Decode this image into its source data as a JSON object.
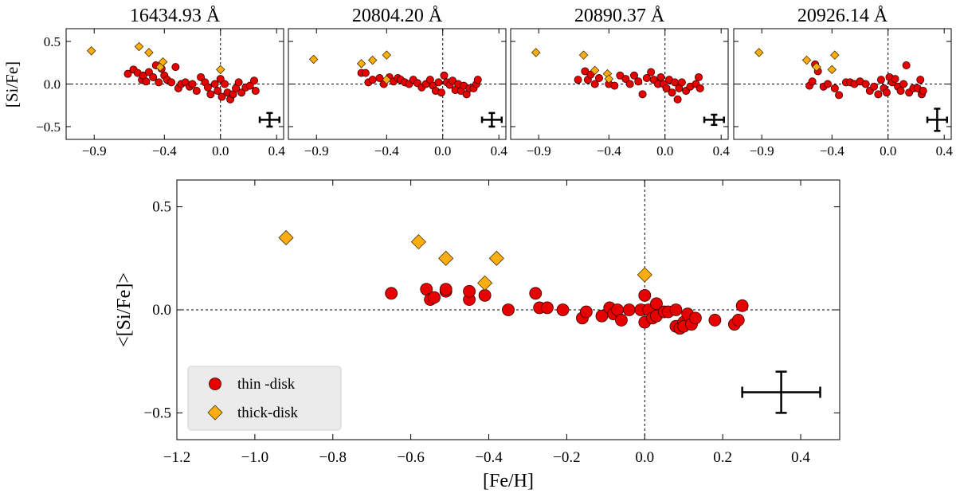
{
  "chart_data": {
    "type": "scatter",
    "top_panels": {
      "ylabel": "[Si/Fe]",
      "xlim": [
        -1.1,
        0.45
      ],
      "ylim": [
        -0.65,
        0.65
      ],
      "xticks": [
        -0.9,
        -0.4,
        0.0,
        0.4
      ],
      "xticklabels": [
        "−0.9",
        "−0.4",
        "0.0",
        "0.4"
      ],
      "yticks": [
        0.5,
        0.0,
        -0.5
      ],
      "yticklabels": [
        "0.5",
        "0.0",
        "−0.5"
      ],
      "panels": [
        {
          "title": "16434.93 Å",
          "error": {
            "x": 0.35,
            "y": -0.42,
            "xerr": 0.07,
            "yerr": 0.08
          },
          "thin": [
            [
              -0.66,
              0.12
            ],
            [
              -0.62,
              0.17
            ],
            [
              -0.59,
              0.13
            ],
            [
              -0.56,
              0.05
            ],
            [
              -0.55,
              0.1
            ],
            [
              -0.53,
              0.03
            ],
            [
              -0.51,
              0.14
            ],
            [
              -0.48,
              0.08
            ],
            [
              -0.46,
              0.22
            ],
            [
              -0.44,
              0.02
            ],
            [
              -0.42,
              0.18
            ],
            [
              -0.4,
              0.1
            ],
            [
              -0.38,
              0.05
            ],
            [
              -0.35,
              0.02
            ],
            [
              -0.32,
              0.2
            ],
            [
              -0.3,
              -0.05
            ],
            [
              -0.28,
              0.0
            ],
            [
              -0.25,
              0.02
            ],
            [
              -0.22,
              -0.03
            ],
            [
              -0.2,
              0.0
            ],
            [
              -0.17,
              -0.08
            ],
            [
              -0.14,
              0.08
            ],
            [
              -0.11,
              0.02
            ],
            [
              -0.09,
              -0.04
            ],
            [
              -0.07,
              -0.12
            ],
            [
              -0.04,
              0.0
            ],
            [
              -0.02,
              -0.08
            ],
            [
              0.0,
              0.06
            ],
            [
              0.01,
              -0.15
            ],
            [
              0.03,
              0.0
            ],
            [
              0.05,
              -0.1
            ],
            [
              0.07,
              -0.18
            ],
            [
              0.09,
              -0.12
            ],
            [
              0.11,
              -0.05
            ],
            [
              0.13,
              0.02
            ],
            [
              0.15,
              -0.1
            ],
            [
              0.18,
              -0.04
            ],
            [
              0.21,
              -0.02
            ],
            [
              0.24,
              0.04
            ],
            [
              0.25,
              -0.08
            ]
          ],
          "thick": [
            [
              -0.92,
              0.39
            ],
            [
              -0.58,
              0.44
            ],
            [
              -0.51,
              0.37
            ],
            [
              -0.43,
              0.2
            ],
            [
              -0.41,
              0.26
            ],
            [
              0.0,
              0.17
            ]
          ]
        },
        {
          "title": "20804.20 Å",
          "error": {
            "x": 0.35,
            "y": -0.42,
            "xerr": 0.07,
            "yerr": 0.08
          },
          "thin": [
            [
              -0.58,
              0.13
            ],
            [
              -0.55,
              0.13
            ],
            [
              -0.53,
              0.02
            ],
            [
              -0.5,
              0.05
            ],
            [
              -0.45,
              0.07
            ],
            [
              -0.42,
              0.0
            ],
            [
              -0.38,
              0.08
            ],
            [
              -0.35,
              0.03
            ],
            [
              -0.32,
              0.07
            ],
            [
              -0.3,
              0.05
            ],
            [
              -0.27,
              0.02
            ],
            [
              -0.24,
              0.0
            ],
            [
              -0.21,
              0.05
            ],
            [
              -0.18,
              0.01
            ],
            [
              -0.15,
              -0.04
            ],
            [
              -0.12,
              0.0
            ],
            [
              -0.09,
              0.05
            ],
            [
              -0.07,
              -0.02
            ],
            [
              -0.05,
              -0.08
            ],
            [
              -0.03,
              0.02
            ],
            [
              -0.01,
              -0.1
            ],
            [
              0.01,
              0.1
            ],
            [
              0.03,
              0.02
            ],
            [
              0.05,
              -0.01
            ],
            [
              0.07,
              0.04
            ],
            [
              0.09,
              -0.07
            ],
            [
              0.11,
              0.0
            ],
            [
              0.13,
              -0.08
            ],
            [
              0.15,
              -0.02
            ],
            [
              0.17,
              -0.12
            ],
            [
              0.19,
              -0.05
            ],
            [
              0.22,
              -0.05
            ],
            [
              0.24,
              0.0
            ],
            [
              0.25,
              0.05
            ]
          ],
          "thick": [
            [
              -0.92,
              0.29
            ],
            [
              -0.58,
              0.24
            ],
            [
              -0.5,
              0.28
            ],
            [
              -0.4,
              0.34
            ],
            [
              -0.4,
              0.05
            ]
          ]
        },
        {
          "title": "20890.37 Å",
          "error": {
            "x": 0.35,
            "y": -0.42,
            "xerr": 0.07,
            "yerr": 0.06
          },
          "thin": [
            [
              -0.62,
              0.05
            ],
            [
              -0.57,
              0.15
            ],
            [
              -0.55,
              0.05
            ],
            [
              -0.53,
              0.11
            ],
            [
              -0.5,
              0.0
            ],
            [
              -0.47,
              0.07
            ],
            [
              -0.4,
              0.0
            ],
            [
              -0.36,
              -0.02
            ],
            [
              -0.32,
              0.1
            ],
            [
              -0.28,
              0.06
            ],
            [
              -0.25,
              0.0
            ],
            [
              -0.22,
              0.1
            ],
            [
              -0.19,
              0.03
            ],
            [
              -0.16,
              -0.12
            ],
            [
              -0.13,
              0.07
            ],
            [
              -0.1,
              0.14
            ],
            [
              -0.08,
              0.05
            ],
            [
              -0.05,
              0.0
            ],
            [
              -0.03,
              0.08
            ],
            [
              -0.01,
              0.0
            ],
            [
              0.01,
              -0.05
            ],
            [
              0.03,
              0.05
            ],
            [
              0.05,
              -0.1
            ],
            [
              0.07,
              0.02
            ],
            [
              0.09,
              -0.18
            ],
            [
              0.1,
              -0.05
            ],
            [
              0.12,
              0.02
            ],
            [
              0.15,
              -0.08
            ],
            [
              0.18,
              -0.03
            ],
            [
              0.22,
              0.0
            ],
            [
              0.24,
              0.08
            ],
            [
              0.25,
              -0.05
            ]
          ],
          "thick": [
            [
              -0.92,
              0.37
            ],
            [
              -0.58,
              0.34
            ],
            [
              -0.5,
              0.16
            ],
            [
              -0.41,
              0.12
            ],
            [
              -0.4,
              0.06
            ]
          ]
        },
        {
          "title": "20926.14 Å",
          "error": {
            "x": 0.35,
            "y": -0.42,
            "xerr": 0.07,
            "yerr": 0.13
          },
          "thin": [
            [
              -0.56,
              -0.02
            ],
            [
              -0.54,
              0.03
            ],
            [
              -0.52,
              0.23
            ],
            [
              -0.5,
              0.15
            ],
            [
              -0.46,
              -0.03
            ],
            [
              -0.43,
              0.0
            ],
            [
              -0.38,
              -0.05
            ],
            [
              -0.35,
              -0.13
            ],
            [
              -0.3,
              0.02
            ],
            [
              -0.27,
              0.02
            ],
            [
              -0.24,
              0.0
            ],
            [
              -0.2,
              0.03
            ],
            [
              -0.16,
              0.0
            ],
            [
              -0.13,
              -0.08
            ],
            [
              -0.1,
              -0.03
            ],
            [
              -0.07,
              -0.12
            ],
            [
              -0.05,
              0.05
            ],
            [
              -0.03,
              -0.05
            ],
            [
              -0.01,
              -0.1
            ],
            [
              0.01,
              0.08
            ],
            [
              0.03,
              0.02
            ],
            [
              0.05,
              0.06
            ],
            [
              0.07,
              -0.03
            ],
            [
              0.09,
              -0.08
            ],
            [
              0.11,
              0.0
            ],
            [
              0.13,
              0.22
            ],
            [
              0.15,
              -0.1
            ],
            [
              0.18,
              -0.05
            ],
            [
              0.21,
              -0.05
            ],
            [
              0.23,
              0.05
            ],
            [
              0.24,
              -0.12
            ],
            [
              0.25,
              -0.08
            ]
          ],
          "thick": [
            [
              -0.92,
              0.37
            ],
            [
              -0.58,
              0.28
            ],
            [
              -0.51,
              0.2
            ],
            [
              -0.4,
              0.17
            ],
            [
              -0.38,
              0.34
            ]
          ]
        }
      ]
    },
    "main_panel": {
      "xlabel": "[Fe/H]",
      "ylabel": "<[Si/Fe]>",
      "xlim": [
        -1.2,
        0.5
      ],
      "ylim": [
        -0.63,
        0.63
      ],
      "xticks": [
        -1.2,
        -1.0,
        -0.8,
        -0.6,
        -0.4,
        -0.2,
        0.0,
        0.2,
        0.4
      ],
      "xticklabels": [
        "−1.2",
        "−1.0",
        "−0.8",
        "−0.6",
        "−0.4",
        "−0.2",
        "0.0",
        "0.2",
        "0.4"
      ],
      "yticks": [
        0.5,
        0.0,
        -0.5
      ],
      "yticklabels": [
        "0.5",
        "0.0",
        "−0.5"
      ],
      "error": {
        "x": 0.35,
        "y": -0.4,
        "xerr": 0.1,
        "yerr": 0.1
      },
      "thin": [
        [
          -0.65,
          0.08
        ],
        [
          -0.56,
          0.1
        ],
        [
          -0.55,
          0.05
        ],
        [
          -0.54,
          0.06
        ],
        [
          -0.51,
          0.09
        ],
        [
          -0.51,
          0.1
        ],
        [
          -0.45,
          0.05
        ],
        [
          -0.45,
          0.09
        ],
        [
          -0.41,
          0.07
        ],
        [
          -0.35,
          0.0
        ],
        [
          -0.28,
          0.08
        ],
        [
          -0.27,
          0.01
        ],
        [
          -0.25,
          0.01
        ],
        [
          -0.21,
          0.0
        ],
        [
          -0.16,
          -0.04
        ],
        [
          -0.15,
          -0.01
        ],
        [
          -0.11,
          -0.03
        ],
        [
          -0.09,
          0.01
        ],
        [
          -0.08,
          -0.02
        ],
        [
          -0.07,
          0.0
        ],
        [
          -0.06,
          -0.05
        ],
        [
          -0.04,
          0.0
        ],
        [
          -0.01,
          0.0
        ],
        [
          0.0,
          -0.06
        ],
        [
          0.0,
          0.07
        ],
        [
          0.01,
          0.0
        ],
        [
          0.02,
          -0.04
        ],
        [
          0.03,
          0.03
        ],
        [
          0.03,
          -0.03
        ],
        [
          0.05,
          -0.01
        ],
        [
          0.06,
          -0.01
        ],
        [
          0.08,
          0.0
        ],
        [
          0.08,
          -0.08
        ],
        [
          0.09,
          -0.09
        ],
        [
          0.1,
          -0.06
        ],
        [
          0.1,
          -0.08
        ],
        [
          0.11,
          -0.02
        ],
        [
          0.12,
          -0.07
        ],
        [
          0.13,
          -0.04
        ],
        [
          0.18,
          -0.05
        ],
        [
          0.23,
          -0.07
        ],
        [
          0.24,
          -0.05
        ],
        [
          0.25,
          0.02
        ]
      ],
      "thick": [
        [
          -0.92,
          0.35
        ],
        [
          -0.58,
          0.33
        ],
        [
          -0.51,
          0.25
        ],
        [
          -0.41,
          0.13
        ],
        [
          -0.38,
          0.25
        ],
        [
          0.0,
          0.17
        ]
      ]
    },
    "legend": {
      "position": "bottom-left",
      "entries": [
        {
          "label": "thin -disk",
          "marker": "circle",
          "color": "#e60000"
        },
        {
          "label": "thick-disk",
          "marker": "diamond",
          "color": "#ffad0f"
        }
      ]
    }
  }
}
